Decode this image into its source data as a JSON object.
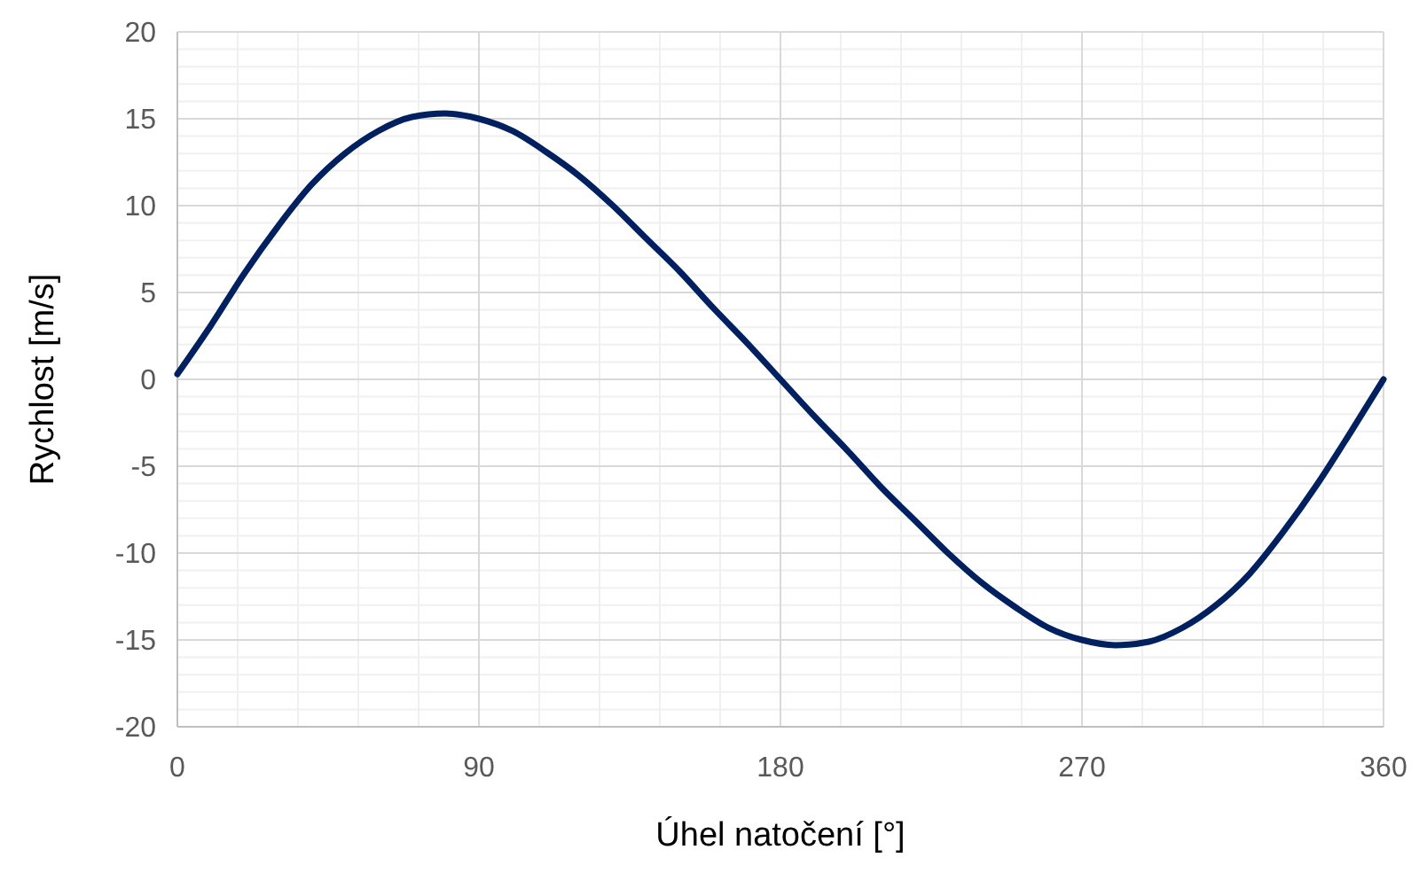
{
  "chart_data": {
    "type": "line",
    "xlabel": "Úhel natočení [°]",
    "ylabel": "Rychlost [m/s]",
    "x": [
      0,
      10,
      20,
      30,
      40,
      50,
      60,
      70,
      80,
      90,
      100,
      110,
      120,
      130,
      140,
      150,
      160,
      170,
      180,
      190,
      200,
      210,
      220,
      230,
      240,
      250,
      260,
      270,
      280,
      290,
      300,
      310,
      320,
      330,
      340,
      350,
      360
    ],
    "series": [
      {
        "color": "#002060",
        "values": [
          0.3,
          3.1,
          6.1,
          8.8,
          11.2,
          13.0,
          14.3,
          15.1,
          15.3,
          15.0,
          14.3,
          13.1,
          11.7,
          10.0,
          8.1,
          6.2,
          4.1,
          2.1,
          0,
          -2.1,
          -4.1,
          -6.2,
          -8.1,
          -10.0,
          -11.7,
          -13.1,
          -14.3,
          -15.0,
          -15.3,
          -15.1,
          -14.3,
          -13.0,
          -11.2,
          -8.8,
          -6.1,
          -3.1,
          0
        ]
      }
    ],
    "xlim": [
      0,
      360
    ],
    "xticks": [
      0,
      90,
      180,
      270,
      360
    ],
    "ylim": [
      -20,
      20
    ],
    "yticks": [
      -20,
      -15,
      -10,
      -5,
      0,
      5,
      10,
      15,
      20
    ],
    "grid": true,
    "marker": "none",
    "line_style": "solid"
  }
}
